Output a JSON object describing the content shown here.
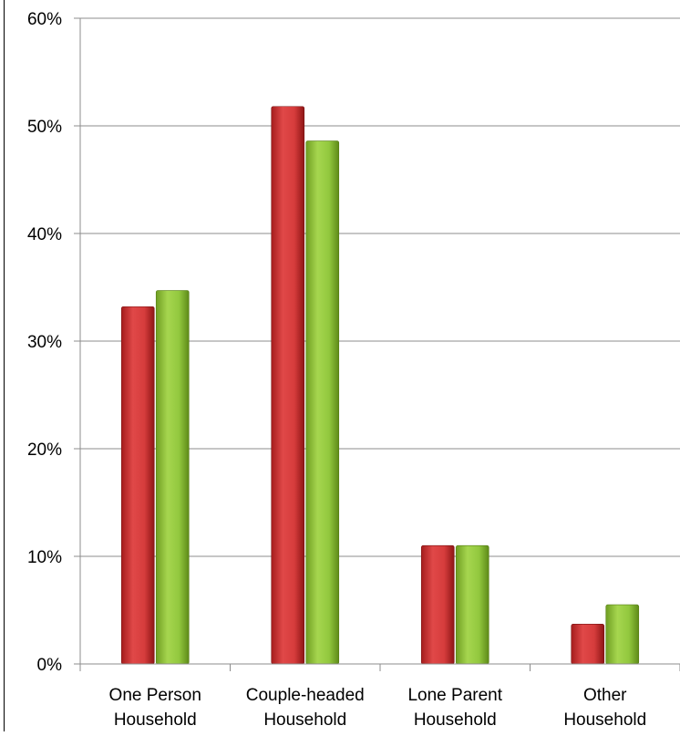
{
  "chart_data": {
    "type": "bar",
    "categories": [
      [
        "One Person",
        "Household"
      ],
      [
        "Couple-headed",
        "Household"
      ],
      [
        "Lone Parent",
        "Household"
      ],
      [
        "Other",
        "Household"
      ]
    ],
    "series": [
      {
        "values": [
          33.2,
          51.8,
          11.0,
          3.7
        ],
        "color": "#d63c3c"
      },
      {
        "values": [
          34.7,
          48.6,
          11.0,
          5.5
        ],
        "color": "#92c83e"
      }
    ],
    "yticks": [
      "0%",
      "10%",
      "20%",
      "30%",
      "40%",
      "50%",
      "60%"
    ],
    "ylim": [
      0,
      60
    ],
    "grid": true,
    "title": "",
    "xlabel": "",
    "ylabel": ""
  }
}
